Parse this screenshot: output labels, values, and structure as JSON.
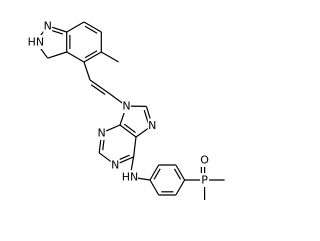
{
  "atom_labels": [
    "N",
    "HN",
    "N",
    "N",
    "N",
    "N",
    "HN",
    "O",
    "P"
  ]
}
